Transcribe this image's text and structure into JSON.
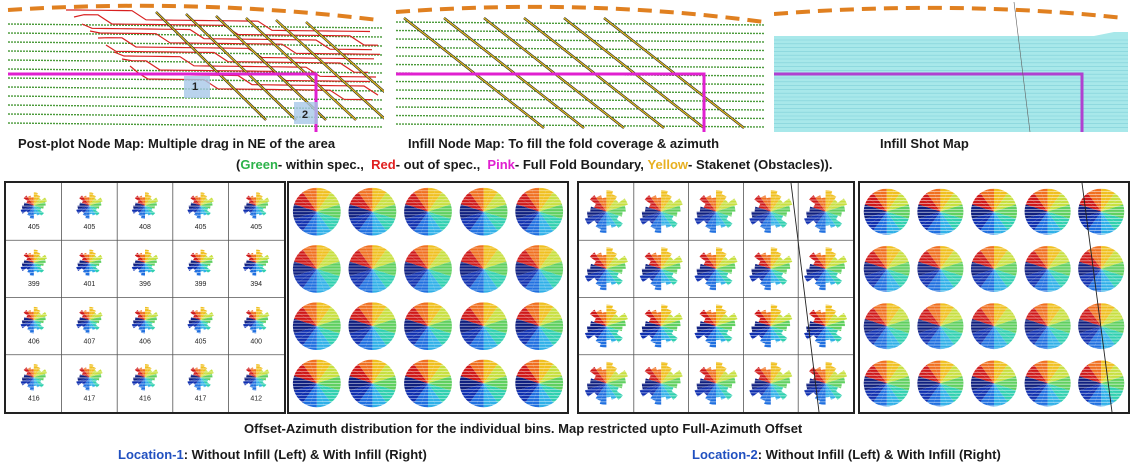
{
  "captions": {
    "map1": "Post-plot Node Map: Multiple drag in NE of the area",
    "map2": "Infill Node Map: To fill the fold coverage & azimuth",
    "map3": "Infill Shot Map",
    "offset": "Offset-Azimuth distribution for the individual bins. Map restricted upto Full-Azimuth Offset"
  },
  "legend": {
    "open": "(",
    "green": "Green",
    "green_desc": "- within spec.,",
    "red": "Red",
    "red_desc": "- out of spec.,",
    "pink": "Pink",
    "pink_desc": "- Full Fold Boundary,",
    "yellow": "Yellow",
    "yellow_desc": "- Stakenet (Obstacles)).",
    "colors": {
      "green": "#2db34a",
      "red": "#e02020",
      "pink": "#e020d0",
      "yellow": "#e8b020"
    }
  },
  "markers": {
    "m1": "1",
    "m2": "2"
  },
  "locations": {
    "loc1_name": "Location-1",
    "loc1_desc": ": Without Infill (Left) & With Infill (Right)",
    "loc2_name": "Location-2",
    "loc2_desc": ": Without Infill (Left) & With Infill (Right)"
  },
  "bin_counts": [
    [
      "405",
      "405",
      "408",
      "405",
      "405"
    ],
    [
      "399",
      "401",
      "396",
      "399",
      "394"
    ],
    [
      "406",
      "407",
      "406",
      "405",
      "400"
    ],
    [
      "416",
      "417",
      "416",
      "417",
      "412"
    ]
  ]
}
